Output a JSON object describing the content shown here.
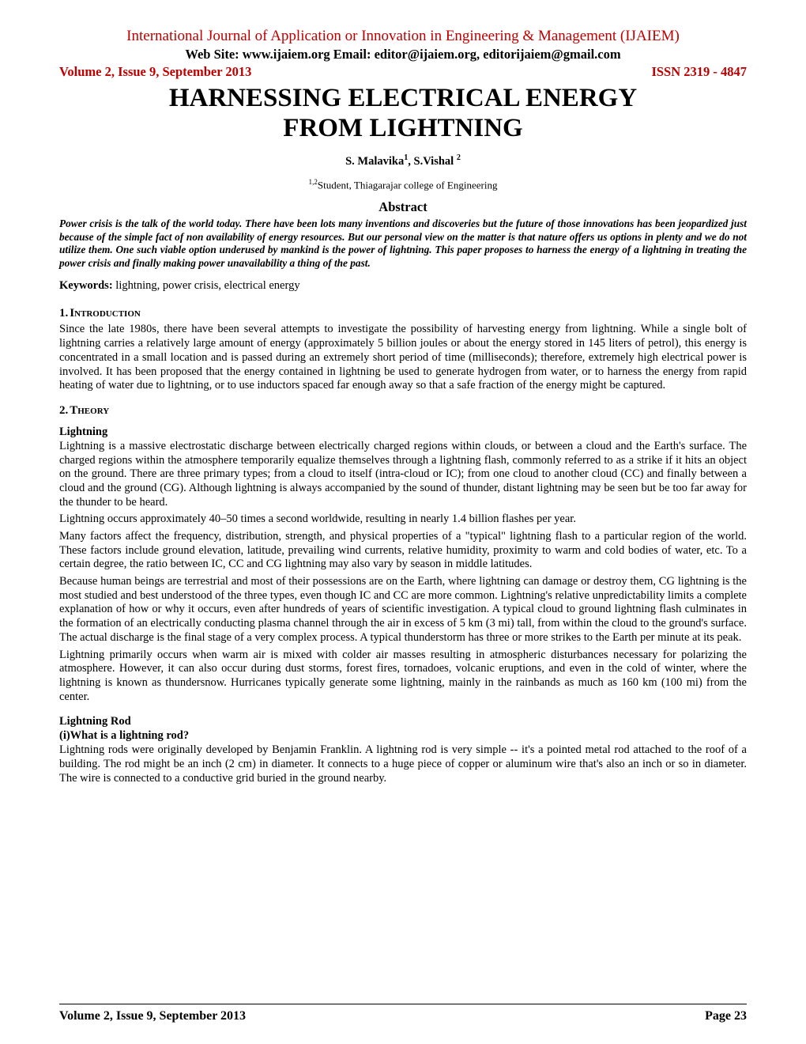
{
  "header": {
    "journal_name": "International Journal of Application or Innovation in Engineering & Management (IJAIEM)",
    "contact_line": "Web Site: www.ijaiem.org Email: editor@ijaiem.org, editorijaiem@gmail.com",
    "volume_issue": "Volume 2, Issue 9, September 2013",
    "issn": "ISSN 2319 - 4847"
  },
  "paper": {
    "title_line1": "HARNESSING ELECTRICAL ENERGY",
    "title_line2": "FROM LIGHTNING",
    "authors_html": "S. Malavika<sup>1</sup>, S.Vishal <sup>2</sup>",
    "affiliation_html": "<sup>1,2</sup>Student, Thiagarajar college of Engineering",
    "abstract_heading": "Abstract",
    "abstract_text": "Power crisis is the talk of the world today. There have been lots many inventions and discoveries but the future of those innovations has been jeopardized just because of the simple fact of non availability of energy resources. But our personal view on the matter is that nature offers us options in plenty and we do not utilize them. One such viable option underused by mankind is the power of lightning. This paper proposes to harness the energy of a lightning in treating the power crisis and finally making power unavailability a thing of the past.",
    "keywords_label": "Keywords:",
    "keywords_text": " lightning, power crisis, electrical energy"
  },
  "sections": {
    "s1": {
      "num": "1.",
      "heading": "Introduction",
      "p1": "Since the late 1980s, there have been several attempts to investigate the possibility of harvesting energy from lightning. While a single bolt of lightning carries a relatively large amount of energy (approximately 5 billion joules or about the energy stored in 145 liters of petrol), this energy is concentrated in a small location and is passed during an extremely short period of time (milliseconds); therefore, extremely high electrical power is involved. It has been proposed that the energy contained in lightning be used to generate hydrogen from water, or to harness the energy from rapid heating of water due to lightning, or to use inductors spaced far enough away so that a safe fraction of the energy might be captured."
    },
    "s2": {
      "num": "2.",
      "heading": "Theory",
      "sub1_heading": "Lightning",
      "sub1_p1": "Lightning is a massive electrostatic discharge between electrically charged regions within clouds, or between a cloud and the Earth's surface. The charged regions within the atmosphere temporarily equalize themselves through a lightning flash, commonly referred to as a strike if it hits an object on the ground. There are three primary types; from a cloud to itself (intra-cloud or IC); from one cloud to another cloud (CC) and finally between a cloud and the ground (CG). Although lightning is always accompanied by the sound of thunder, distant lightning may be seen but be too far away for the thunder to be heard.",
      "sub1_p2": "Lightning occurs approximately 40–50 times a second worldwide, resulting in nearly 1.4 billion flashes per year.",
      "sub1_p3": "Many factors affect the frequency, distribution, strength, and physical properties of a \"typical\" lightning flash to a particular region of the world. These factors include ground elevation, latitude, prevailing wind currents, relative humidity, proximity to warm and cold bodies of water, etc. To a certain degree, the ratio between IC, CC and CG lightning may also vary by season in middle latitudes.",
      "sub1_p4": "Because human beings are terrestrial and most of their possessions are on the Earth, where lightning can damage or destroy them, CG lightning is the most studied and best understood of the three types, even though IC and CC are more common. Lightning's relative unpredictability limits a complete explanation of how or why it occurs, even after hundreds of years of scientific investigation. A typical cloud to ground lightning flash culminates in the formation of an electrically conducting plasma channel through the air in excess of 5 km (3 mi) tall, from within the cloud to the ground's surface. The actual discharge is the final stage of a very complex process. A typical thunderstorm has three or more strikes to the Earth per minute at its peak.",
      "sub1_p5": "Lightning primarily occurs when warm air is mixed with colder air masses resulting in atmospheric disturbances necessary for polarizing the atmosphere. However, it can also occur during dust storms, forest fires, tornadoes, volcanic eruptions, and even in the cold of winter, where the lightning is known as thundersnow. Hurricanes typically generate some lightning, mainly in the rainbands as much as 160 km (100 mi) from the center.",
      "sub2_heading": "Lightning Rod",
      "sub2_q": "(i)What is a lightning rod?",
      "sub2_p1": "Lightning rods were originally developed by Benjamin Franklin. A lightning rod is very simple -- it's a pointed metal rod attached to the roof of a building. The rod might be an inch (2 cm) in diameter. It connects to a huge piece of copper or aluminum wire that's also an inch or so in diameter. The wire is connected to a conductive grid buried in the ground nearby."
    }
  },
  "footer": {
    "left": "Volume 2, Issue 9, September 2013",
    "right": "Page 23"
  }
}
